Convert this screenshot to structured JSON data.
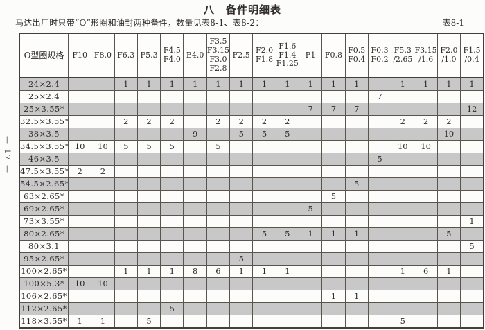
{
  "page": {
    "title": "八　备件明细表",
    "caption": "马达出厂时只带“O”形圈和油封两种备件，数量见表8-1、表8-2：",
    "table_tag": "表8-1",
    "page_number": "— 17 —"
  },
  "table": {
    "corner_header": "O型圈规格",
    "columns": [
      "F10",
      "F8.0",
      "F6.3",
      "F5.3",
      "F4.5\nF4.0",
      "E4.0",
      "F3.5\nF3.15\nF3.0\nF2.8",
      "F2.5",
      "F2.0\nF1.8",
      "F1.6\nF1.4\nF1.25",
      "F1",
      "F0.8",
      "F0.5\nF0.4",
      "F0.3\nF0.2",
      "F5.3\n/2.65",
      "F3.15\n/1.6",
      "F2.0\n/1.0",
      "F1.5\n/0.4"
    ],
    "rows": [
      {
        "label": "24×2.4",
        "shaded": true,
        "values": [
          "",
          "",
          "1",
          "1",
          "1",
          "1",
          "1",
          "1",
          "1",
          "1",
          "1",
          "1",
          "1",
          "",
          "1",
          "1",
          "1",
          "1"
        ]
      },
      {
        "label": "25×2.4",
        "shaded": false,
        "values": [
          "",
          "",
          "",
          "",
          "",
          "",
          "",
          "",
          "",
          "",
          "",
          "",
          "",
          "7",
          "",
          "",
          "",
          ""
        ]
      },
      {
        "label": "25×3.55*",
        "shaded": true,
        "values": [
          "",
          "",
          "",
          "",
          "",
          "",
          "",
          "",
          "",
          "",
          "7",
          "7",
          "7",
          "",
          "",
          "",
          "",
          "12"
        ]
      },
      {
        "label": "32.5×3.55*",
        "shaded": false,
        "values": [
          "",
          "",
          "2",
          "2",
          "2",
          "",
          "2",
          "2",
          "2",
          "2",
          "",
          "",
          "",
          "",
          "2",
          "2",
          "2",
          ""
        ]
      },
      {
        "label": "38×3.5",
        "shaded": true,
        "values": [
          "",
          "",
          "",
          "",
          "",
          "9",
          "",
          "5",
          "5",
          "5",
          "",
          "",
          "",
          "",
          "",
          "",
          "10",
          ""
        ]
      },
      {
        "label": "34.5×3.55*",
        "shaded": false,
        "values": [
          "10",
          "10",
          "5",
          "5",
          "5",
          "",
          "5",
          "",
          "",
          "",
          "",
          "",
          "",
          "",
          "10",
          "10",
          "",
          ""
        ]
      },
      {
        "label": "46×3.5",
        "shaded": true,
        "values": [
          "",
          "",
          "",
          "",
          "",
          "",
          "",
          "",
          "",
          "",
          "",
          "",
          "",
          "5",
          "",
          "",
          "",
          ""
        ]
      },
      {
        "label": "47.5×3.55*",
        "shaded": false,
        "values": [
          "2",
          "2",
          "",
          "",
          "",
          "",
          "",
          "",
          "",
          "",
          "",
          "",
          "",
          "",
          "",
          "",
          "",
          ""
        ]
      },
      {
        "label": "54.5×2.65*",
        "shaded": true,
        "values": [
          "",
          "",
          "",
          "",
          "",
          "",
          "",
          "",
          "",
          "",
          "",
          "",
          "5",
          "",
          "",
          "",
          "",
          ""
        ]
      },
      {
        "label": "63×2.65*",
        "shaded": false,
        "values": [
          "",
          "",
          "",
          "",
          "",
          "",
          "",
          "",
          "",
          "",
          "",
          "5",
          "",
          "",
          "",
          "",
          "",
          ""
        ]
      },
      {
        "label": "69×2.65*",
        "shaded": true,
        "values": [
          "",
          "",
          "",
          "",
          "",
          "",
          "",
          "",
          "",
          "",
          "5",
          "",
          "",
          "",
          "",
          "",
          "",
          ""
        ]
      },
      {
        "label": "73×3.55*",
        "shaded": false,
        "values": [
          "",
          "",
          "",
          "",
          "",
          "",
          "",
          "",
          "",
          "",
          "",
          "",
          "",
          "",
          "",
          "",
          "",
          "1"
        ]
      },
      {
        "label": "80×2.65*",
        "shaded": true,
        "values": [
          "",
          "",
          "",
          "",
          "",
          "",
          "",
          "",
          "5",
          "5",
          "1",
          "1",
          "1",
          "",
          "",
          "",
          "5",
          ""
        ]
      },
      {
        "label": "80×3.1",
        "shaded": false,
        "values": [
          "",
          "",
          "",
          "",
          "",
          "",
          "",
          "",
          "",
          "",
          "",
          "",
          "",
          "",
          "",
          "",
          "",
          "5"
        ]
      },
      {
        "label": "95×2.65*",
        "shaded": true,
        "values": [
          "",
          "",
          "",
          "",
          "",
          "",
          "",
          "5",
          "",
          "",
          "",
          "",
          "",
          "",
          "",
          "",
          "",
          ""
        ]
      },
      {
        "label": "100×2.65*",
        "shaded": false,
        "values": [
          "",
          "",
          "1",
          "1",
          "1",
          "8",
          "6",
          "1",
          "1",
          "1",
          "",
          "",
          "",
          "",
          "1",
          "6",
          "1",
          ""
        ]
      },
      {
        "label": "100×5.3*",
        "shaded": true,
        "values": [
          "10",
          "10",
          "",
          "",
          "",
          "",
          "",
          "",
          "",
          "",
          "",
          "",
          "",
          "",
          "",
          "",
          "",
          ""
        ]
      },
      {
        "label": "106×2.65*",
        "shaded": false,
        "values": [
          "",
          "",
          "",
          "",
          "",
          "",
          "",
          "",
          "",
          "",
          "",
          "1",
          "1",
          "",
          "",
          "",
          "",
          ""
        ]
      },
      {
        "label": "112×2.65*",
        "shaded": true,
        "values": [
          "",
          "",
          "",
          "",
          "5",
          "",
          "",
          "",
          "",
          "",
          "",
          "",
          "",
          "",
          "",
          "",
          "",
          ""
        ]
      },
      {
        "label": "118×3.55*",
        "shaded": false,
        "values": [
          "1",
          "1",
          "",
          "5",
          "",
          "",
          "",
          "",
          "",
          "",
          "",
          "",
          "",
          "",
          "5",
          "",
          "",
          ""
        ]
      }
    ]
  },
  "colors": {
    "row_shade": "#c8c8c8",
    "grid_line": "#5a544d",
    "outer_border": "#453f3a",
    "text": "#2f2b28",
    "page_bg": "#fcfcfa"
  }
}
